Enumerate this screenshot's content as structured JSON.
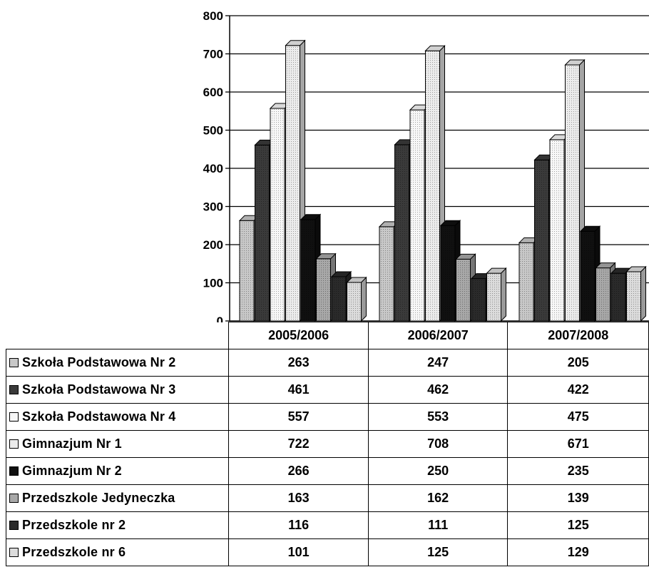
{
  "chart_data": {
    "type": "bar",
    "categories": [
      "2005/2006",
      "2006/2007",
      "2007/2008"
    ],
    "ylim": [
      0,
      800
    ],
    "yticks": [
      "0",
      "100",
      "200",
      "300",
      "400",
      "500",
      "600",
      "700",
      "800"
    ],
    "grid": true,
    "legend": "table-left",
    "series": [
      {
        "name": "Szkoła Podstawowa Nr 2",
        "values": [
          263,
          247,
          205
        ],
        "color": "#c8c8c8"
      },
      {
        "name": "Szkoła Podstawowa Nr 3",
        "values": [
          461,
          462,
          422
        ],
        "color": "#3a3a3a"
      },
      {
        "name": "Szkoła Podstawowa Nr 4",
        "values": [
          557,
          553,
          475
        ],
        "color": "#f7f7f7"
      },
      {
        "name": "Gimnazjum Nr 1",
        "values": [
          722,
          708,
          671
        ],
        "color": "#ececec"
      },
      {
        "name": "Gimnazjum Nr 2",
        "values": [
          266,
          250,
          235
        ],
        "color": "#101010"
      },
      {
        "name": "Przedszkole Jedyneczka",
        "values": [
          163,
          162,
          139
        ],
        "color": "#a8a8a8"
      },
      {
        "name": "Przedszkole nr 2",
        "values": [
          116,
          111,
          125
        ],
        "color": "#2a2a2a"
      },
      {
        "name": "Przedszkole nr 6",
        "values": [
          101,
          125,
          129
        ],
        "color": "#dcdcdc"
      }
    ],
    "table": {
      "rows": [
        {
          "label": "Szkoła Podstawowa Nr 2",
          "values": [
            "263",
            "247",
            "205"
          ]
        },
        {
          "label": "Szkoła Podstawowa Nr 3",
          "values": [
            "461",
            "462",
            "422"
          ]
        },
        {
          "label": "Szkoła Podstawowa Nr 4",
          "values": [
            "557",
            "553",
            "475"
          ]
        },
        {
          "label": "Gimnazjum Nr 1",
          "values": [
            "722",
            "708",
            "671"
          ]
        },
        {
          "label": "Gimnazjum Nr 2",
          "values": [
            "266",
            "250",
            "235"
          ]
        },
        {
          "label": "Przedszkole Jedyneczka",
          "values": [
            "163",
            "162",
            "139"
          ]
        },
        {
          "label": "Przedszkole nr 2",
          "values": [
            "116",
            "111",
            "125"
          ]
        },
        {
          "label": "Przedszkole nr 6",
          "values": [
            "101",
            "125",
            "129"
          ]
        }
      ]
    }
  }
}
